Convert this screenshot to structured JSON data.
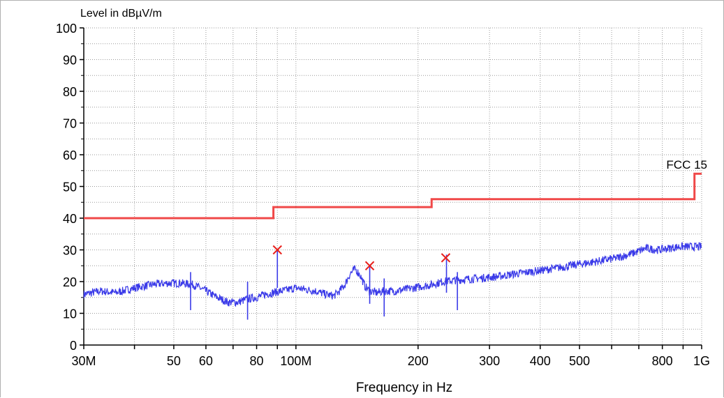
{
  "chart_data": {
    "type": "line",
    "ylabel": "Level in dBµV/m",
    "xlabel": "Frequency in Hz",
    "x_scale": "log",
    "xlim": [
      30000000,
      1000000000
    ],
    "ylim": [
      0,
      100
    ],
    "grid": true,
    "y_ticks": [
      0,
      10,
      20,
      30,
      40,
      50,
      60,
      70,
      80,
      90,
      100
    ],
    "x_tick_labels": [
      {
        "f": 30000000,
        "label": "30M"
      },
      {
        "f": 50000000,
        "label": "50"
      },
      {
        "f": 60000000,
        "label": "60"
      },
      {
        "f": 80000000,
        "label": "80"
      },
      {
        "f": 100000000,
        "label": "100M"
      },
      {
        "f": 200000000,
        "label": "200"
      },
      {
        "f": 300000000,
        "label": "300"
      },
      {
        "f": 400000000,
        "label": "400"
      },
      {
        "f": 500000000,
        "label": "500"
      },
      {
        "f": 800000000,
        "label": "800"
      },
      {
        "f": 1000000000,
        "label": "1G"
      }
    ],
    "limit_line": {
      "name": "FCC 15",
      "color": "#f04848",
      "segments": [
        {
          "f_start": 30000000,
          "f_end": 88000000,
          "level": 40
        },
        {
          "f_start": 88000000,
          "f_end": 216000000,
          "level": 43.5
        },
        {
          "f_start": 216000000,
          "f_end": 960000000,
          "level": 46
        },
        {
          "f_start": 960000000,
          "f_end": 1000000000,
          "level": 54
        }
      ]
    },
    "trace": {
      "color": "#3a3ae8",
      "points": [
        [
          30000000,
          16
        ],
        [
          33000000,
          17
        ],
        [
          36000000,
          16.5
        ],
        [
          40000000,
          18
        ],
        [
          44000000,
          19
        ],
        [
          48000000,
          19.5
        ],
        [
          52000000,
          19.5
        ],
        [
          56000000,
          19
        ],
        [
          60000000,
          17
        ],
        [
          64000000,
          15
        ],
        [
          68000000,
          13.5
        ],
        [
          72000000,
          13.5
        ],
        [
          76000000,
          14.5
        ],
        [
          80000000,
          15
        ],
        [
          84000000,
          16
        ],
        [
          88000000,
          16.5
        ],
        [
          92000000,
          17
        ],
        [
          96000000,
          17.5
        ],
        [
          100000000,
          18
        ],
        [
          106000000,
          17.5
        ],
        [
          112000000,
          17
        ],
        [
          118000000,
          16
        ],
        [
          124000000,
          15.5
        ],
        [
          128000000,
          17
        ],
        [
          132000000,
          19
        ],
        [
          136000000,
          22.5
        ],
        [
          140000000,
          24
        ],
        [
          144000000,
          22
        ],
        [
          148000000,
          18.5
        ],
        [
          152000000,
          17
        ],
        [
          158000000,
          16.5
        ],
        [
          165000000,
          17
        ],
        [
          175000000,
          17
        ],
        [
          185000000,
          17.5
        ],
        [
          195000000,
          18
        ],
        [
          205000000,
          18.5
        ],
        [
          216000000,
          19
        ],
        [
          230000000,
          20
        ],
        [
          250000000,
          20.5
        ],
        [
          280000000,
          21
        ],
        [
          310000000,
          21.5
        ],
        [
          350000000,
          22.5
        ],
        [
          400000000,
          23.5
        ],
        [
          450000000,
          24.5
        ],
        [
          500000000,
          25.5
        ],
        [
          560000000,
          26.5
        ],
        [
          620000000,
          27.5
        ],
        [
          680000000,
          29
        ],
        [
          730000000,
          30.5
        ],
        [
          780000000,
          30
        ],
        [
          830000000,
          30.5
        ],
        [
          880000000,
          31
        ],
        [
          930000000,
          31
        ],
        [
          1000000000,
          31
        ]
      ],
      "spikes": [
        {
          "f": 55000000,
          "level": 23
        },
        {
          "f": 76000000,
          "level": 20
        },
        {
          "f": 90000000,
          "level": 30
        },
        {
          "f": 152000000,
          "level": 25
        },
        {
          "f": 165000000,
          "level": 21
        },
        {
          "f": 235000000,
          "level": 28.5
        },
        {
          "f": 250000000,
          "level": 23
        }
      ]
    },
    "markers": [
      {
        "f": 90000000,
        "level": 30
      },
      {
        "f": 152000000,
        "level": 25
      },
      {
        "f": 234000000,
        "level": 27.5
      }
    ]
  }
}
